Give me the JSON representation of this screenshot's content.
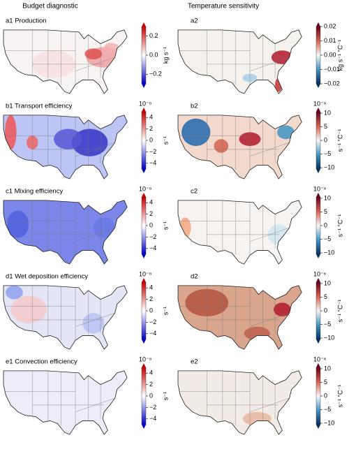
{
  "headers": [
    "Budget diagnostic",
    "Temperature sensitivity"
  ],
  "panels": [
    {
      "label": "a1 Production",
      "colormap": "bwr",
      "range": [
        -0.3,
        0.3
      ],
      "ticks": [
        {
          "value": 0.2,
          "label": "0.2"
        },
        {
          "value": 0.0,
          "label": "0.0"
        },
        {
          "value": -0.2,
          "label": "−0.2"
        }
      ],
      "unit": "kg s⁻¹"
    },
    {
      "label": "a2",
      "colormap": "RdBu_r",
      "range": [
        -0.02,
        0.02
      ],
      "ticks": [
        {
          "value": 0.02,
          "label": "0.02"
        },
        {
          "value": 0.01,
          "label": "0.01"
        },
        {
          "value": 0.0,
          "label": "0.00"
        },
        {
          "value": -0.01,
          "label": "−0.01"
        },
        {
          "value": -0.02,
          "label": "−0.02"
        }
      ],
      "unit": "kg s⁻¹ °C⁻¹"
    },
    {
      "label": "b1 Transport efficiency",
      "colormap": "bwr",
      "range": [
        -5,
        5
      ],
      "multiplier": "10⁻⁶",
      "ticks": [
        {
          "value": 4,
          "label": "4"
        },
        {
          "value": 2,
          "label": "2"
        },
        {
          "value": 0,
          "label": "0"
        },
        {
          "value": -2,
          "label": "−2"
        },
        {
          "value": -4,
          "label": "−4"
        }
      ],
      "unit": "s⁻¹"
    },
    {
      "label": "b2",
      "colormap": "RdBu_r",
      "range": [
        -10.5,
        10.5
      ],
      "multiplier": "10⁻⁶",
      "ticks": [
        {
          "value": 10,
          "label": "10"
        },
        {
          "value": 5,
          "label": "5"
        },
        {
          "value": 0,
          "label": "0"
        },
        {
          "value": -5,
          "label": "−5"
        },
        {
          "value": -10,
          "label": "−10"
        }
      ],
      "unit": "s⁻¹ °C⁻¹"
    },
    {
      "label": "c1 Mixing efficiency",
      "colormap": "bwr",
      "range": [
        -5,
        5
      ],
      "multiplier": "10⁻⁶",
      "ticks": [
        {
          "value": 4,
          "label": "4"
        },
        {
          "value": 2,
          "label": "2"
        },
        {
          "value": 0,
          "label": "0"
        },
        {
          "value": -2,
          "label": "−2"
        },
        {
          "value": -4,
          "label": "−4"
        }
      ],
      "unit": "s⁻¹"
    },
    {
      "label": "c2",
      "colormap": "RdBu_r",
      "range": [
        -10.5,
        10.5
      ],
      "multiplier": "10⁻⁶",
      "ticks": [
        {
          "value": 10,
          "label": "10"
        },
        {
          "value": 5,
          "label": "5"
        },
        {
          "value": 0,
          "label": "0"
        },
        {
          "value": -5,
          "label": "−5"
        },
        {
          "value": -10,
          "label": "−10"
        }
      ],
      "unit": "s⁻¹ °C⁻¹"
    },
    {
      "label": "d1 Wet deposition efficiency",
      "colormap": "bwr",
      "range": [
        -5,
        5
      ],
      "multiplier": "10⁻⁶",
      "ticks": [
        {
          "value": 4,
          "label": "4"
        },
        {
          "value": 2,
          "label": "2"
        },
        {
          "value": 0,
          "label": "0"
        },
        {
          "value": -2,
          "label": "−2"
        },
        {
          "value": -4,
          "label": "−4"
        }
      ],
      "unit": "s⁻¹"
    },
    {
      "label": "d2",
      "colormap": "RdBu_r",
      "range": [
        -10.5,
        10.5
      ],
      "multiplier": "10⁻⁶",
      "ticks": [
        {
          "value": 10,
          "label": "10"
        },
        {
          "value": 5,
          "label": "5"
        },
        {
          "value": 0,
          "label": "0"
        },
        {
          "value": -5,
          "label": "−5"
        },
        {
          "value": -10,
          "label": "−10"
        }
      ],
      "unit": "s⁻¹ °C⁻¹"
    },
    {
      "label": "e1 Convection efficiency",
      "colormap": "bwr",
      "range": [
        -5,
        5
      ],
      "multiplier": "10⁻⁶",
      "ticks": [
        {
          "value": 4,
          "label": "4"
        },
        {
          "value": 2,
          "label": "2"
        },
        {
          "value": 0,
          "label": "0"
        },
        {
          "value": -2,
          "label": "−2"
        },
        {
          "value": -4,
          "label": "−4"
        }
      ],
      "unit": "s⁻¹"
    },
    {
      "label": "e2",
      "colormap": "RdBu_r",
      "range": [
        -10.5,
        10.5
      ],
      "multiplier": "10⁻⁶",
      "ticks": [
        {
          "value": 10,
          "label": "10"
        },
        {
          "value": 5,
          "label": "5"
        },
        {
          "value": 0,
          "label": "0"
        },
        {
          "value": -5,
          "label": "−5"
        },
        {
          "value": -10,
          "label": "−10"
        }
      ],
      "unit": "s⁻¹ °C⁻¹"
    }
  ]
}
